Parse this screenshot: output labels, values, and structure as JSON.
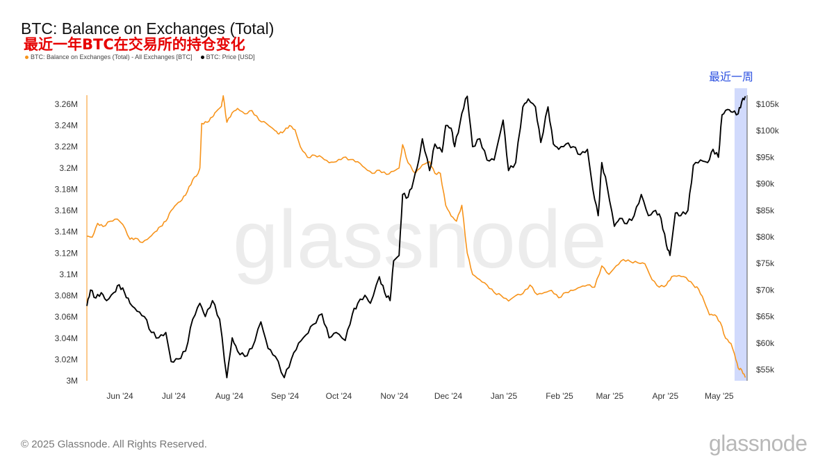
{
  "title": "BTC: Balance on Exchanges (Total)",
  "subtitle": "最近一年BTC在交易所的持仓变化",
  "legend": [
    {
      "label": "BTC: Balance on Exchanges (Total) - All Exchanges [BTC]",
      "color": "#f7931a"
    },
    {
      "label": "BTC: Price [USD]",
      "color": "#000000"
    }
  ],
  "highlight_label": "最近一周",
  "watermark": "glassnode",
  "copyright": "© 2025 Glassnode. All Rights Reserved.",
  "brand": "glassnode",
  "chart_data": {
    "type": "line",
    "x_ticks": [
      "Jun '24",
      "Jul '24",
      "Aug '24",
      "Sep '24",
      "Oct '24",
      "Nov '24",
      "Dec '24",
      "Jan '25",
      "Feb '25",
      "Mar '25",
      "Apr '25",
      "May '25"
    ],
    "x_range": [
      "2024-05-19",
      "2025-05-22"
    ],
    "y_left": {
      "ticks": [
        "3M",
        "3.02M",
        "3.04M",
        "3.06M",
        "3.08M",
        "3.1M",
        "3.12M",
        "3.14M",
        "3.16M",
        "3.18M",
        "3.2M",
        "3.22M",
        "3.24M",
        "3.26M"
      ],
      "range": [
        3000000,
        3270000
      ]
    },
    "y_right": {
      "ticks": [
        "$55k",
        "$60k",
        "$65k",
        "$70k",
        "$75k",
        "$80k",
        "$85k",
        "$90k",
        "$95k",
        "$100k",
        "$105k"
      ],
      "range": [
        53000,
        107000
      ]
    },
    "highlight": {
      "start": "2025-05-15",
      "end": "2025-05-22",
      "color": "#c9d3fb"
    },
    "series": [
      {
        "name": "BTC: Balance on Exchanges (Total) - All Exchanges [BTC]",
        "axis": "left",
        "color": "#f7931a",
        "points": [
          [
            "2024-05-19",
            3136000
          ],
          [
            "2024-05-22",
            3135000
          ],
          [
            "2024-05-25",
            3148000
          ],
          [
            "2024-05-28",
            3145000
          ],
          [
            "2024-06-01",
            3150000
          ],
          [
            "2024-06-05",
            3152000
          ],
          [
            "2024-06-08",
            3147000
          ],
          [
            "2024-06-12",
            3133000
          ],
          [
            "2024-06-15",
            3134000
          ],
          [
            "2024-06-19",
            3130000
          ],
          [
            "2024-06-23",
            3135000
          ],
          [
            "2024-06-26",
            3140000
          ],
          [
            "2024-06-29",
            3145000
          ],
          [
            "2024-07-02",
            3150000
          ],
          [
            "2024-07-05",
            3160000
          ],
          [
            "2024-07-08",
            3166000
          ],
          [
            "2024-07-11",
            3170000
          ],
          [
            "2024-07-14",
            3178000
          ],
          [
            "2024-07-17",
            3189000
          ],
          [
            "2024-07-20",
            3195000
          ],
          [
            "2024-07-21",
            3200000
          ],
          [
            "2024-07-22",
            3242000
          ],
          [
            "2024-07-25",
            3243000
          ],
          [
            "2024-07-28",
            3248000
          ],
          [
            "2024-07-30",
            3253000
          ],
          [
            "2024-08-02",
            3258000
          ],
          [
            "2024-08-03",
            3268000
          ],
          [
            "2024-08-05",
            3243000
          ],
          [
            "2024-08-08",
            3252000
          ],
          [
            "2024-08-11",
            3256000
          ],
          [
            "2024-08-15",
            3251000
          ],
          [
            "2024-08-19",
            3254000
          ],
          [
            "2024-08-23",
            3245000
          ],
          [
            "2024-08-27",
            3242000
          ],
          [
            "2024-09-01",
            3235000
          ],
          [
            "2024-09-03",
            3232000
          ],
          [
            "2024-09-06",
            3235000
          ],
          [
            "2024-09-09",
            3240000
          ],
          [
            "2024-09-12",
            3236000
          ],
          [
            "2024-09-15",
            3220000
          ],
          [
            "2024-09-19",
            3210000
          ],
          [
            "2024-09-23",
            3212000
          ],
          [
            "2024-09-27",
            3210000
          ],
          [
            "2024-10-01",
            3205000
          ],
          [
            "2024-10-05",
            3206000
          ],
          [
            "2024-10-09",
            3210000
          ],
          [
            "2024-10-13",
            3208000
          ],
          [
            "2024-10-17",
            3206000
          ],
          [
            "2024-10-21",
            3200000
          ],
          [
            "2024-10-25",
            3195000
          ],
          [
            "2024-10-29",
            3198000
          ],
          [
            "2024-11-02",
            3194000
          ],
          [
            "2024-11-06",
            3197000
          ],
          [
            "2024-11-09",
            3200000
          ],
          [
            "2024-11-11",
            3222000
          ],
          [
            "2024-11-14",
            3205000
          ],
          [
            "2024-11-18",
            3195000
          ],
          [
            "2024-11-22",
            3203000
          ],
          [
            "2024-11-26",
            3206000
          ],
          [
            "2024-11-29",
            3195000
          ],
          [
            "2024-12-02",
            3195000
          ],
          [
            "2024-12-05",
            3165000
          ],
          [
            "2024-12-08",
            3155000
          ],
          [
            "2024-12-11",
            3150000
          ],
          [
            "2024-12-14",
            3165000
          ],
          [
            "2024-12-17",
            3120000
          ],
          [
            "2024-12-20",
            3100000
          ],
          [
            "2024-12-24",
            3095000
          ],
          [
            "2024-12-28",
            3090000
          ],
          [
            "2025-01-01",
            3083000
          ],
          [
            "2025-01-05",
            3080000
          ],
          [
            "2025-01-09",
            3075000
          ],
          [
            "2025-01-13",
            3080000
          ],
          [
            "2025-01-17",
            3082000
          ],
          [
            "2025-01-21",
            3090000
          ],
          [
            "2025-01-25",
            3081000
          ],
          [
            "2025-01-29",
            3083000
          ],
          [
            "2025-02-02",
            3085000
          ],
          [
            "2025-02-06",
            3078000
          ],
          [
            "2025-02-10",
            3083000
          ],
          [
            "2025-02-14",
            3085000
          ],
          [
            "2025-02-18",
            3088000
          ],
          [
            "2025-02-22",
            3090000
          ],
          [
            "2025-02-26",
            3088000
          ],
          [
            "2025-03-02",
            3108000
          ],
          [
            "2025-03-06",
            3100000
          ],
          [
            "2025-03-10",
            3108000
          ],
          [
            "2025-03-14",
            3114000
          ],
          [
            "2025-03-18",
            3112000
          ],
          [
            "2025-03-22",
            3111000
          ],
          [
            "2025-03-26",
            3110000
          ],
          [
            "2025-03-30",
            3095000
          ],
          [
            "2025-04-03",
            3088000
          ],
          [
            "2025-04-07",
            3090000
          ],
          [
            "2025-04-10",
            3098000
          ],
          [
            "2025-04-14",
            3099000
          ],
          [
            "2025-04-18",
            3097000
          ],
          [
            "2025-04-22",
            3090000
          ],
          [
            "2025-04-25",
            3086000
          ],
          [
            "2025-04-28",
            3075000
          ],
          [
            "2025-05-01",
            3062000
          ],
          [
            "2025-05-04",
            3062000
          ],
          [
            "2025-05-07",
            3055000
          ],
          [
            "2025-05-10",
            3040000
          ],
          [
            "2025-05-13",
            3035000
          ],
          [
            "2025-05-15",
            3025000
          ],
          [
            "2025-05-17",
            3012000
          ],
          [
            "2025-05-19",
            3010000
          ],
          [
            "2025-05-21",
            3003000
          ]
        ]
      },
      {
        "name": "BTC: Price [USD]",
        "axis": "right",
        "color": "#000000",
        "points": [
          [
            "2024-05-19",
            67000
          ],
          [
            "2024-05-21",
            70000
          ],
          [
            "2024-05-24",
            68500
          ],
          [
            "2024-05-27",
            69500
          ],
          [
            "2024-05-30",
            68000
          ],
          [
            "2024-06-03",
            69500
          ],
          [
            "2024-06-06",
            71000
          ],
          [
            "2024-06-09",
            69500
          ],
          [
            "2024-06-12",
            67500
          ],
          [
            "2024-06-16",
            66000
          ],
          [
            "2024-06-20",
            65000
          ],
          [
            "2024-06-24",
            62000
          ],
          [
            "2024-06-28",
            61000
          ],
          [
            "2024-07-02",
            62000
          ],
          [
            "2024-07-05",
            56500
          ],
          [
            "2024-07-09",
            57000
          ],
          [
            "2024-07-13",
            58500
          ],
          [
            "2024-07-17",
            64500
          ],
          [
            "2024-07-21",
            67500
          ],
          [
            "2024-07-24",
            65000
          ],
          [
            "2024-07-28",
            68000
          ],
          [
            "2024-08-01",
            64500
          ],
          [
            "2024-08-05",
            53500
          ],
          [
            "2024-08-08",
            61000
          ],
          [
            "2024-08-11",
            58500
          ],
          [
            "2024-08-15",
            57500
          ],
          [
            "2024-08-19",
            59000
          ],
          [
            "2024-08-24",
            64000
          ],
          [
            "2024-08-28",
            59000
          ],
          [
            "2024-09-01",
            57500
          ],
          [
            "2024-09-06",
            53500
          ],
          [
            "2024-09-10",
            57000
          ],
          [
            "2024-09-14",
            60000
          ],
          [
            "2024-09-18",
            61500
          ],
          [
            "2024-09-22",
            63500
          ],
          [
            "2024-09-27",
            65500
          ],
          [
            "2024-10-01",
            61000
          ],
          [
            "2024-10-05",
            62000
          ],
          [
            "2024-10-10",
            60500
          ],
          [
            "2024-10-14",
            65500
          ],
          [
            "2024-10-17",
            67500
          ],
          [
            "2024-10-21",
            69000
          ],
          [
            "2024-10-24",
            67500
          ],
          [
            "2024-10-29",
            72500
          ],
          [
            "2024-11-01",
            69500
          ],
          [
            "2024-11-04",
            68000
          ],
          [
            "2024-11-06",
            75500
          ],
          [
            "2024-11-09",
            76500
          ],
          [
            "2024-11-11",
            88000
          ],
          [
            "2024-11-14",
            87500
          ],
          [
            "2024-11-17",
            90500
          ],
          [
            "2024-11-20",
            94500
          ],
          [
            "2024-11-22",
            98500
          ],
          [
            "2024-11-26",
            92500
          ],
          [
            "2024-11-29",
            97500
          ],
          [
            "2024-12-03",
            96000
          ],
          [
            "2024-12-05",
            101000
          ],
          [
            "2024-12-08",
            100500
          ],
          [
            "2024-12-10",
            97000
          ],
          [
            "2024-12-13",
            101500
          ],
          [
            "2024-12-16",
            106000
          ],
          [
            "2024-12-17",
            106500
          ],
          [
            "2024-12-20",
            97000
          ],
          [
            "2024-12-24",
            98500
          ],
          [
            "2024-12-28",
            94500
          ],
          [
            "2025-01-01",
            94500
          ],
          [
            "2025-01-06",
            102000
          ],
          [
            "2025-01-09",
            92500
          ],
          [
            "2025-01-13",
            94000
          ],
          [
            "2025-01-17",
            104500
          ],
          [
            "2025-01-20",
            106000
          ],
          [
            "2025-01-24",
            104500
          ],
          [
            "2025-01-27",
            97800
          ],
          [
            "2025-01-31",
            104500
          ],
          [
            "2025-02-03",
            97500
          ],
          [
            "2025-02-06",
            96500
          ],
          [
            "2025-02-10",
            97500
          ],
          [
            "2025-02-14",
            97000
          ],
          [
            "2025-02-18",
            95500
          ],
          [
            "2025-02-22",
            96500
          ],
          [
            "2025-02-25",
            89000
          ],
          [
            "2025-02-28",
            84000
          ],
          [
            "2025-03-02",
            94000
          ],
          [
            "2025-03-05",
            89500
          ],
          [
            "2025-03-09",
            82000
          ],
          [
            "2025-03-12",
            83500
          ],
          [
            "2025-03-16",
            82500
          ],
          [
            "2025-03-20",
            84000
          ],
          [
            "2025-03-24",
            88000
          ],
          [
            "2025-03-28",
            84000
          ],
          [
            "2025-04-01",
            85000
          ],
          [
            "2025-04-04",
            83500
          ],
          [
            "2025-04-07",
            78500
          ],
          [
            "2025-04-09",
            76500
          ],
          [
            "2025-04-12",
            84500
          ],
          [
            "2025-04-15",
            84000
          ],
          [
            "2025-04-19",
            85000
          ],
          [
            "2025-04-22",
            93500
          ],
          [
            "2025-04-26",
            94500
          ],
          [
            "2025-04-30",
            94000
          ],
          [
            "2025-05-03",
            96500
          ],
          [
            "2025-05-06",
            95000
          ],
          [
            "2025-05-08",
            103000
          ],
          [
            "2025-05-11",
            104000
          ],
          [
            "2025-05-14",
            103500
          ],
          [
            "2025-05-17",
            103200
          ],
          [
            "2025-05-19",
            105500
          ],
          [
            "2025-05-21",
            106500
          ]
        ]
      }
    ]
  }
}
